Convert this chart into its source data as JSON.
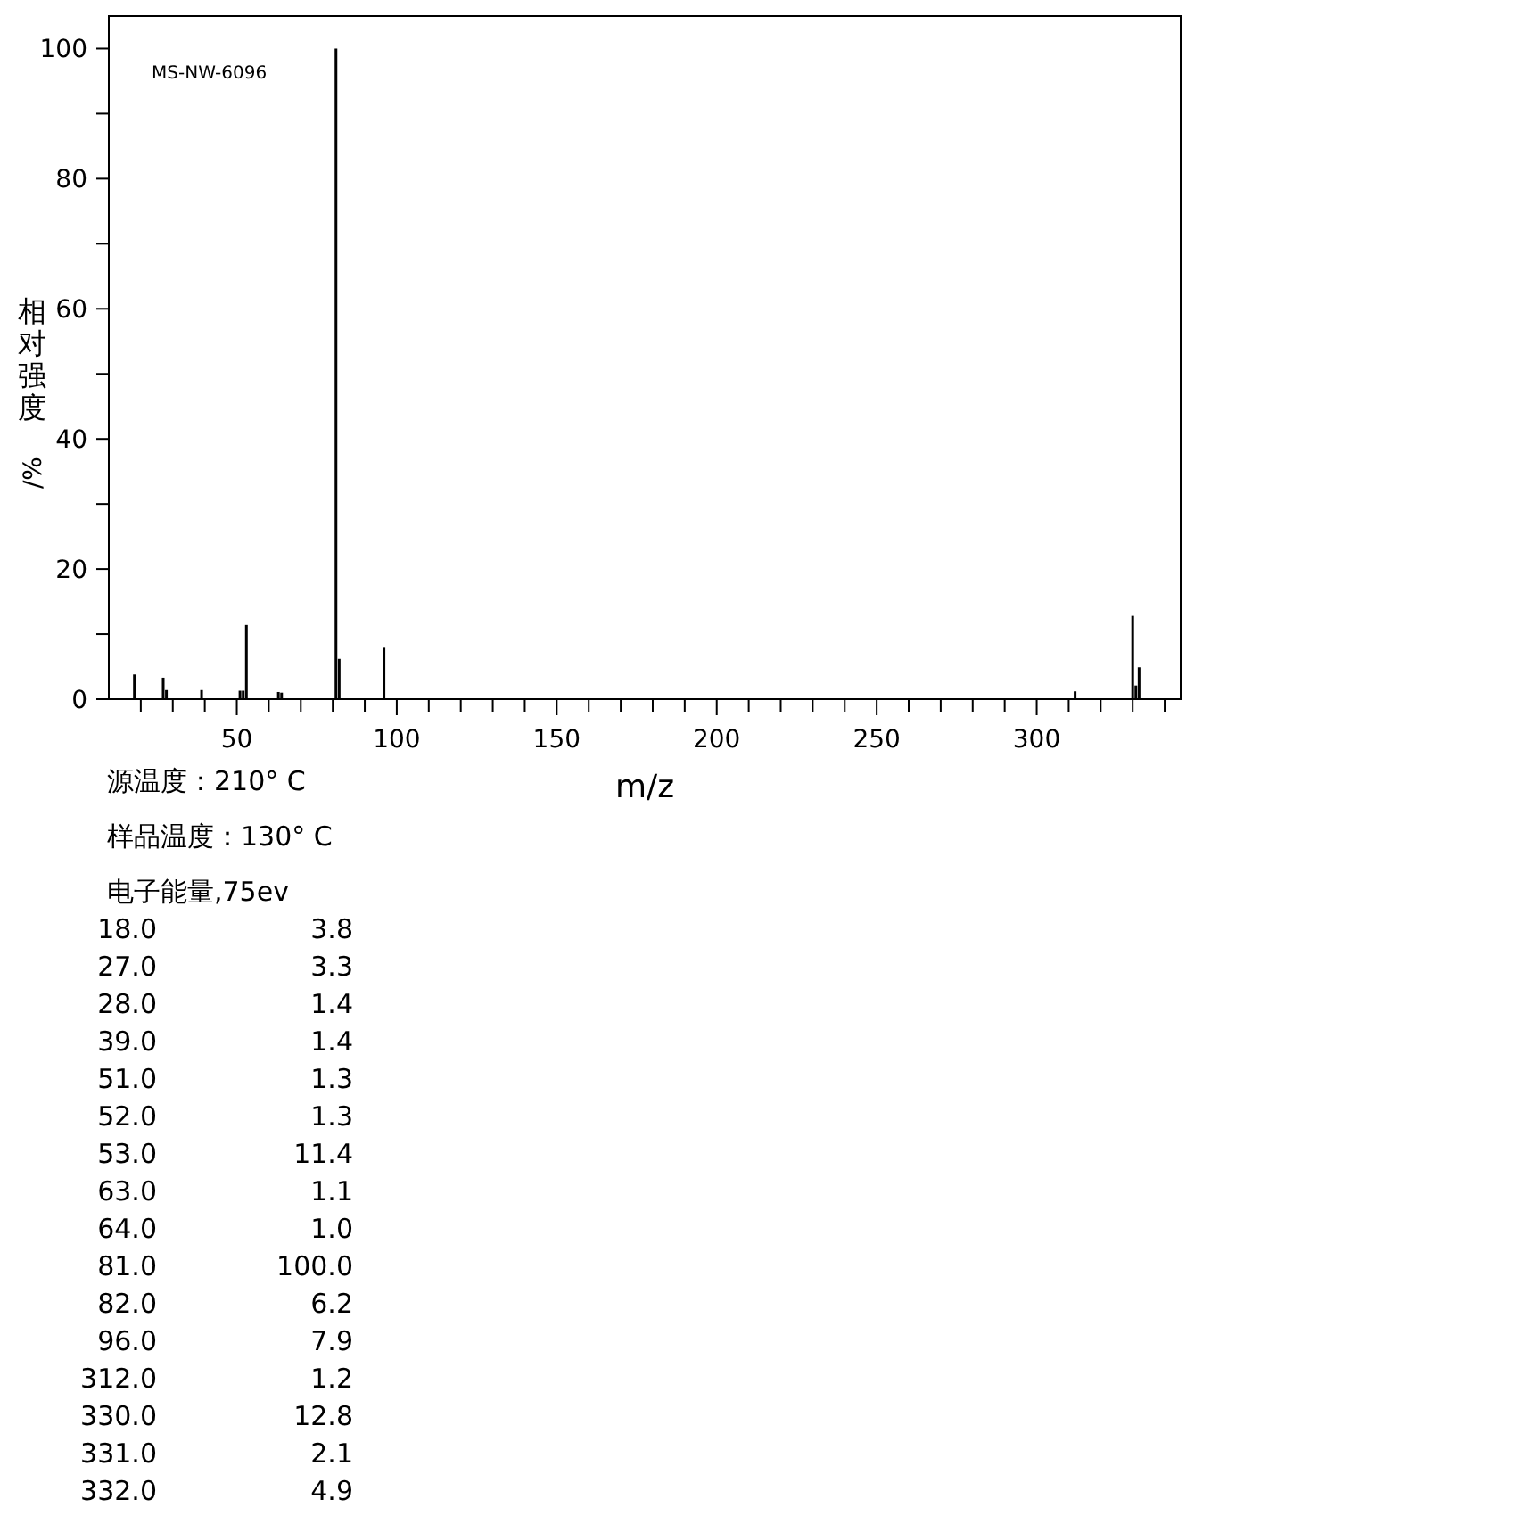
{
  "chart_data": {
    "type": "bar",
    "xlabel": "m/z",
    "ylabel": "相对强度/%",
    "color": "#000000",
    "x": [
      18,
      27,
      28,
      39,
      51,
      52,
      53,
      63,
      64,
      81,
      82,
      96,
      312,
      330,
      331,
      332
    ],
    "values": [
      3.8,
      3.3,
      1.4,
      1.4,
      1.3,
      1.3,
      11.4,
      1.1,
      1.0,
      100.0,
      6.2,
      7.9,
      1.2,
      12.8,
      2.1,
      4.9
    ],
    "xlim": [
      10,
      345
    ],
    "ylim": [
      0,
      105
    ],
    "xticks": [
      {
        "value": 20,
        "label": null
      },
      {
        "value": 30,
        "label": null
      },
      {
        "value": 40,
        "label": null
      },
      50,
      {
        "value": 60,
        "label": null
      },
      {
        "value": 70,
        "label": null
      },
      {
        "value": 80,
        "label": null
      },
      {
        "value": 90,
        "label": null
      },
      100,
      {
        "value": 110,
        "label": null
      },
      {
        "value": 120,
        "label": null
      },
      {
        "value": 130,
        "label": null
      },
      {
        "value": 140,
        "label": null
      },
      150,
      {
        "value": 160,
        "label": null
      },
      {
        "value": 170,
        "label": null
      },
      {
        "value": 180,
        "label": null
      },
      {
        "value": 190,
        "label": null
      },
      200,
      {
        "value": 210,
        "label": null
      },
      {
        "value": 220,
        "label": null
      },
      {
        "value": 230,
        "label": null
      },
      {
        "value": 240,
        "label": null
      },
      250,
      {
        "value": 260,
        "label": null
      },
      {
        "value": 270,
        "label": null
      },
      {
        "value": 280,
        "label": null
      },
      {
        "value": 290,
        "label": null
      },
      300,
      {
        "value": 310,
        "label": null
      },
      {
        "value": 320,
        "label": null
      },
      {
        "value": 330,
        "label": null
      },
      {
        "value": 340,
        "label": null
      }
    ],
    "yticks": [
      0,
      {
        "value": 10,
        "label": null
      },
      20,
      {
        "value": 30,
        "label": null
      },
      40,
      {
        "value": 50,
        "label": null
      },
      60,
      {
        "value": 70,
        "label": null
      },
      80,
      {
        "value": 90,
        "label": null
      },
      100
    ],
    "annotations": [
      "MS-NW-6096",
      "源温度：210° C",
      "样品温度：130° C",
      "电子能量,75ev",
      "18.0",
      "3.8",
      "27.0",
      "3.3",
      "28.0",
      "1.4",
      "39.0",
      "1.4",
      "51.0",
      "1.3",
      "52.0",
      "1.3",
      "53.0",
      "11.4",
      "63.0",
      "1.1",
      "64.0",
      "1.0",
      "81.0",
      "100.0",
      "82.0",
      "6.2",
      "96.0",
      "7.9",
      "312.0",
      "1.2",
      "330.0",
      "12.8",
      "331.0",
      "2.1",
      "332.0",
      "4.9"
    ]
  }
}
